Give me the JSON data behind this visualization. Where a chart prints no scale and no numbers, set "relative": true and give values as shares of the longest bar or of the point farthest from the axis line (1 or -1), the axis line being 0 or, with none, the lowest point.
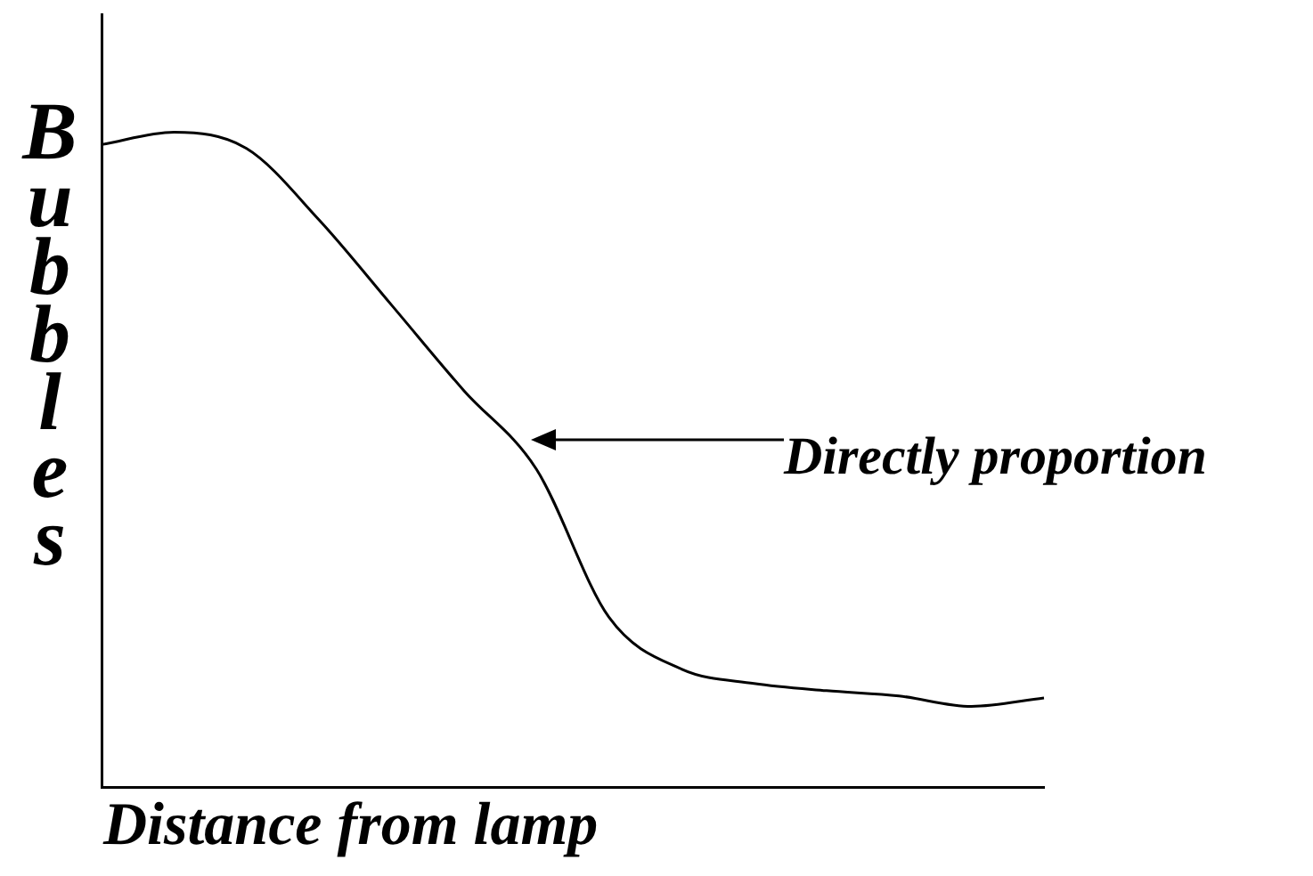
{
  "chart_data": {
    "type": "line",
    "relative": true,
    "xlabel": "Distance from lamp",
    "ylabel": "Bubbles",
    "categories": [
      null,
      null,
      null,
      null,
      null,
      null,
      null,
      null,
      null,
      null,
      null,
      null,
      null,
      null
    ],
    "series": [
      {
        "color": "#000000",
        "values": [
          0.981,
          1,
          0.975,
          0.866,
          0.736,
          0.605,
          0.485,
          0.259,
          0.18,
          0.158,
          0.147,
          0.139,
          0.123,
          0.136
        ]
      }
    ],
    "annotations": [
      "Directly proportion"
    ],
    "grid": false,
    "legend": false,
    "marker": "none",
    "line_style": "solid"
  }
}
